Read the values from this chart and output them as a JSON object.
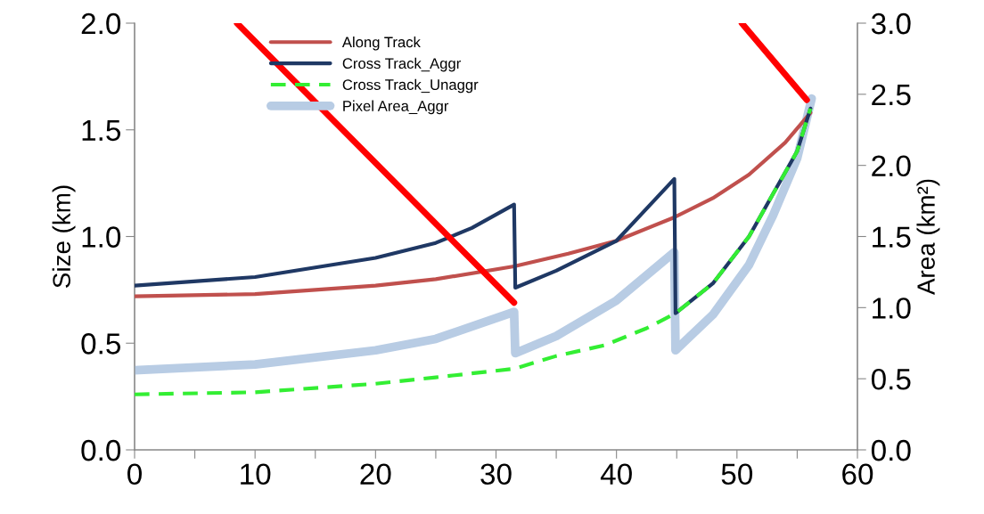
{
  "chart_data": {
    "type": "line",
    "ylabel": "Size (km)",
    "y2label": "Area (km²)",
    "xlim": [
      0,
      60
    ],
    "xticks": [
      0,
      {
        "value": 5,
        "label": null
      },
      10,
      {
        "value": 15,
        "label": null
      },
      20,
      {
        "value": 25,
        "label": null
      },
      30,
      {
        "value": 35,
        "label": null
      },
      40,
      {
        "value": 45,
        "label": null
      },
      50,
      {
        "value": 55,
        "label": null
      },
      60
    ],
    "ylim": [
      0,
      2.0
    ],
    "yticks": [
      {
        "value": 0,
        "label": "0.0"
      },
      0.5,
      {
        "value": 1,
        "label": "1.0"
      },
      1.5,
      {
        "value": 2,
        "label": "2.0"
      }
    ],
    "y2lim": [
      0,
      3.0
    ],
    "y2ticks": [
      {
        "value": 0,
        "label": "0.0"
      },
      0.5,
      {
        "value": 1,
        "label": "1.0"
      },
      1.5,
      {
        "value": 2,
        "label": "2.0"
      },
      2.5,
      {
        "value": 3,
        "label": "3.0"
      }
    ],
    "grid": false,
    "legend": "top left",
    "marker": "none",
    "series": [
      {
        "name": "Along Track",
        "color": "#c0504d",
        "x": [
          0,
          10,
          20,
          25,
          31.5,
          36,
          40,
          44.8,
          48,
          51,
          54,
          56.1
        ],
        "values": [
          0.72,
          0.73,
          0.77,
          0.8,
          0.86,
          0.92,
          0.98,
          1.09,
          1.18,
          1.29,
          1.44,
          1.58
        ]
      },
      {
        "name": "Cross Track_Aggr",
        "color": "#1f3864",
        "x": [
          0,
          10,
          20,
          25,
          28,
          31.5,
          31.6,
          35,
          40,
          44.8,
          44.9,
          48,
          51,
          53,
          55,
          56.1
        ],
        "values": [
          0.77,
          0.81,
          0.9,
          0.97,
          1.04,
          1.15,
          0.76,
          0.84,
          0.98,
          1.27,
          0.64,
          0.78,
          1.0,
          1.2,
          1.4,
          1.6
        ]
      },
      {
        "name": "Cross Track_Unaggr",
        "color": "#33ee33",
        "line_style": "dashed",
        "x": [
          0,
          10,
          20,
          25,
          31.5,
          35,
          39,
          42.5,
          44.9,
          48,
          51,
          53,
          55,
          56.1
        ],
        "values": [
          0.26,
          0.27,
          0.31,
          0.34,
          0.38,
          0.44,
          0.49,
          0.57,
          0.64,
          0.78,
          1.0,
          1.2,
          1.4,
          1.6
        ]
      },
      {
        "name": "Pixel Area_Aggr",
        "color": "#b8cce4",
        "axis": "y2",
        "x": [
          0,
          10,
          20,
          25,
          31.5,
          31.6,
          35,
          40,
          44.8,
          44.9,
          48,
          51,
          53,
          55,
          56.2
        ],
        "values": [
          0.56,
          0.6,
          0.7,
          0.78,
          0.97,
          0.68,
          0.8,
          1.05,
          1.39,
          0.7,
          0.95,
          1.3,
          1.65,
          2.05,
          2.47
        ]
      },
      {
        "color": "#ff0000",
        "x": [
          8.5,
          31.5
        ],
        "values": [
          2.0,
          0.69
        ]
      },
      {
        "color": "#ff0000",
        "x": [
          50.4,
          55.8
        ],
        "values": [
          2.0,
          1.64
        ]
      }
    ]
  }
}
